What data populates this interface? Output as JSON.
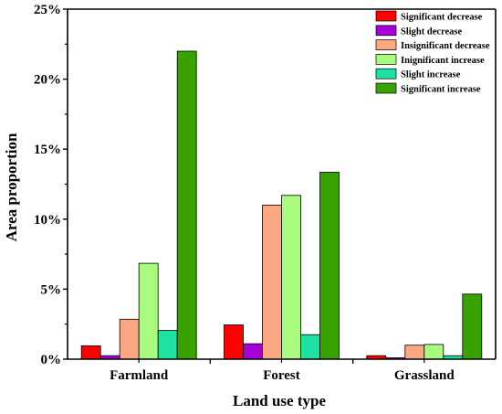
{
  "chart_data": {
    "type": "bar",
    "xlabel": "Land use type",
    "ylabel": "Area proportion",
    "categories": [
      "Farmland",
      "Forest",
      "Grassland"
    ],
    "ylim": [
      0,
      25
    ],
    "yticks": [
      0,
      5,
      10,
      15,
      20,
      25
    ],
    "ytick_labels": [
      "0%",
      "5%",
      "10%",
      "15%",
      "20%",
      "25%"
    ],
    "legend_position": "top-right",
    "grid": false,
    "series": [
      {
        "name": "Significant decrease",
        "color": "#ff0000",
        "values": [
          0.95,
          2.45,
          0.25
        ]
      },
      {
        "name": "Slight decrease",
        "color": "#a600d6",
        "values": [
          0.25,
          1.1,
          0.1
        ]
      },
      {
        "name": "Insignificant decrease",
        "color": "#fba882",
        "values": [
          2.85,
          11.0,
          1.0
        ]
      },
      {
        "name": "Inignificant increase",
        "color": "#a9fb7f",
        "values": [
          6.85,
          11.7,
          1.05
        ]
      },
      {
        "name": "Slight increase",
        "color": "#1de0a3",
        "values": [
          2.05,
          1.75,
          0.25
        ]
      },
      {
        "name": "Significant increase",
        "color": "#38a300",
        "values": [
          22.0,
          13.35,
          4.65
        ]
      }
    ]
  }
}
